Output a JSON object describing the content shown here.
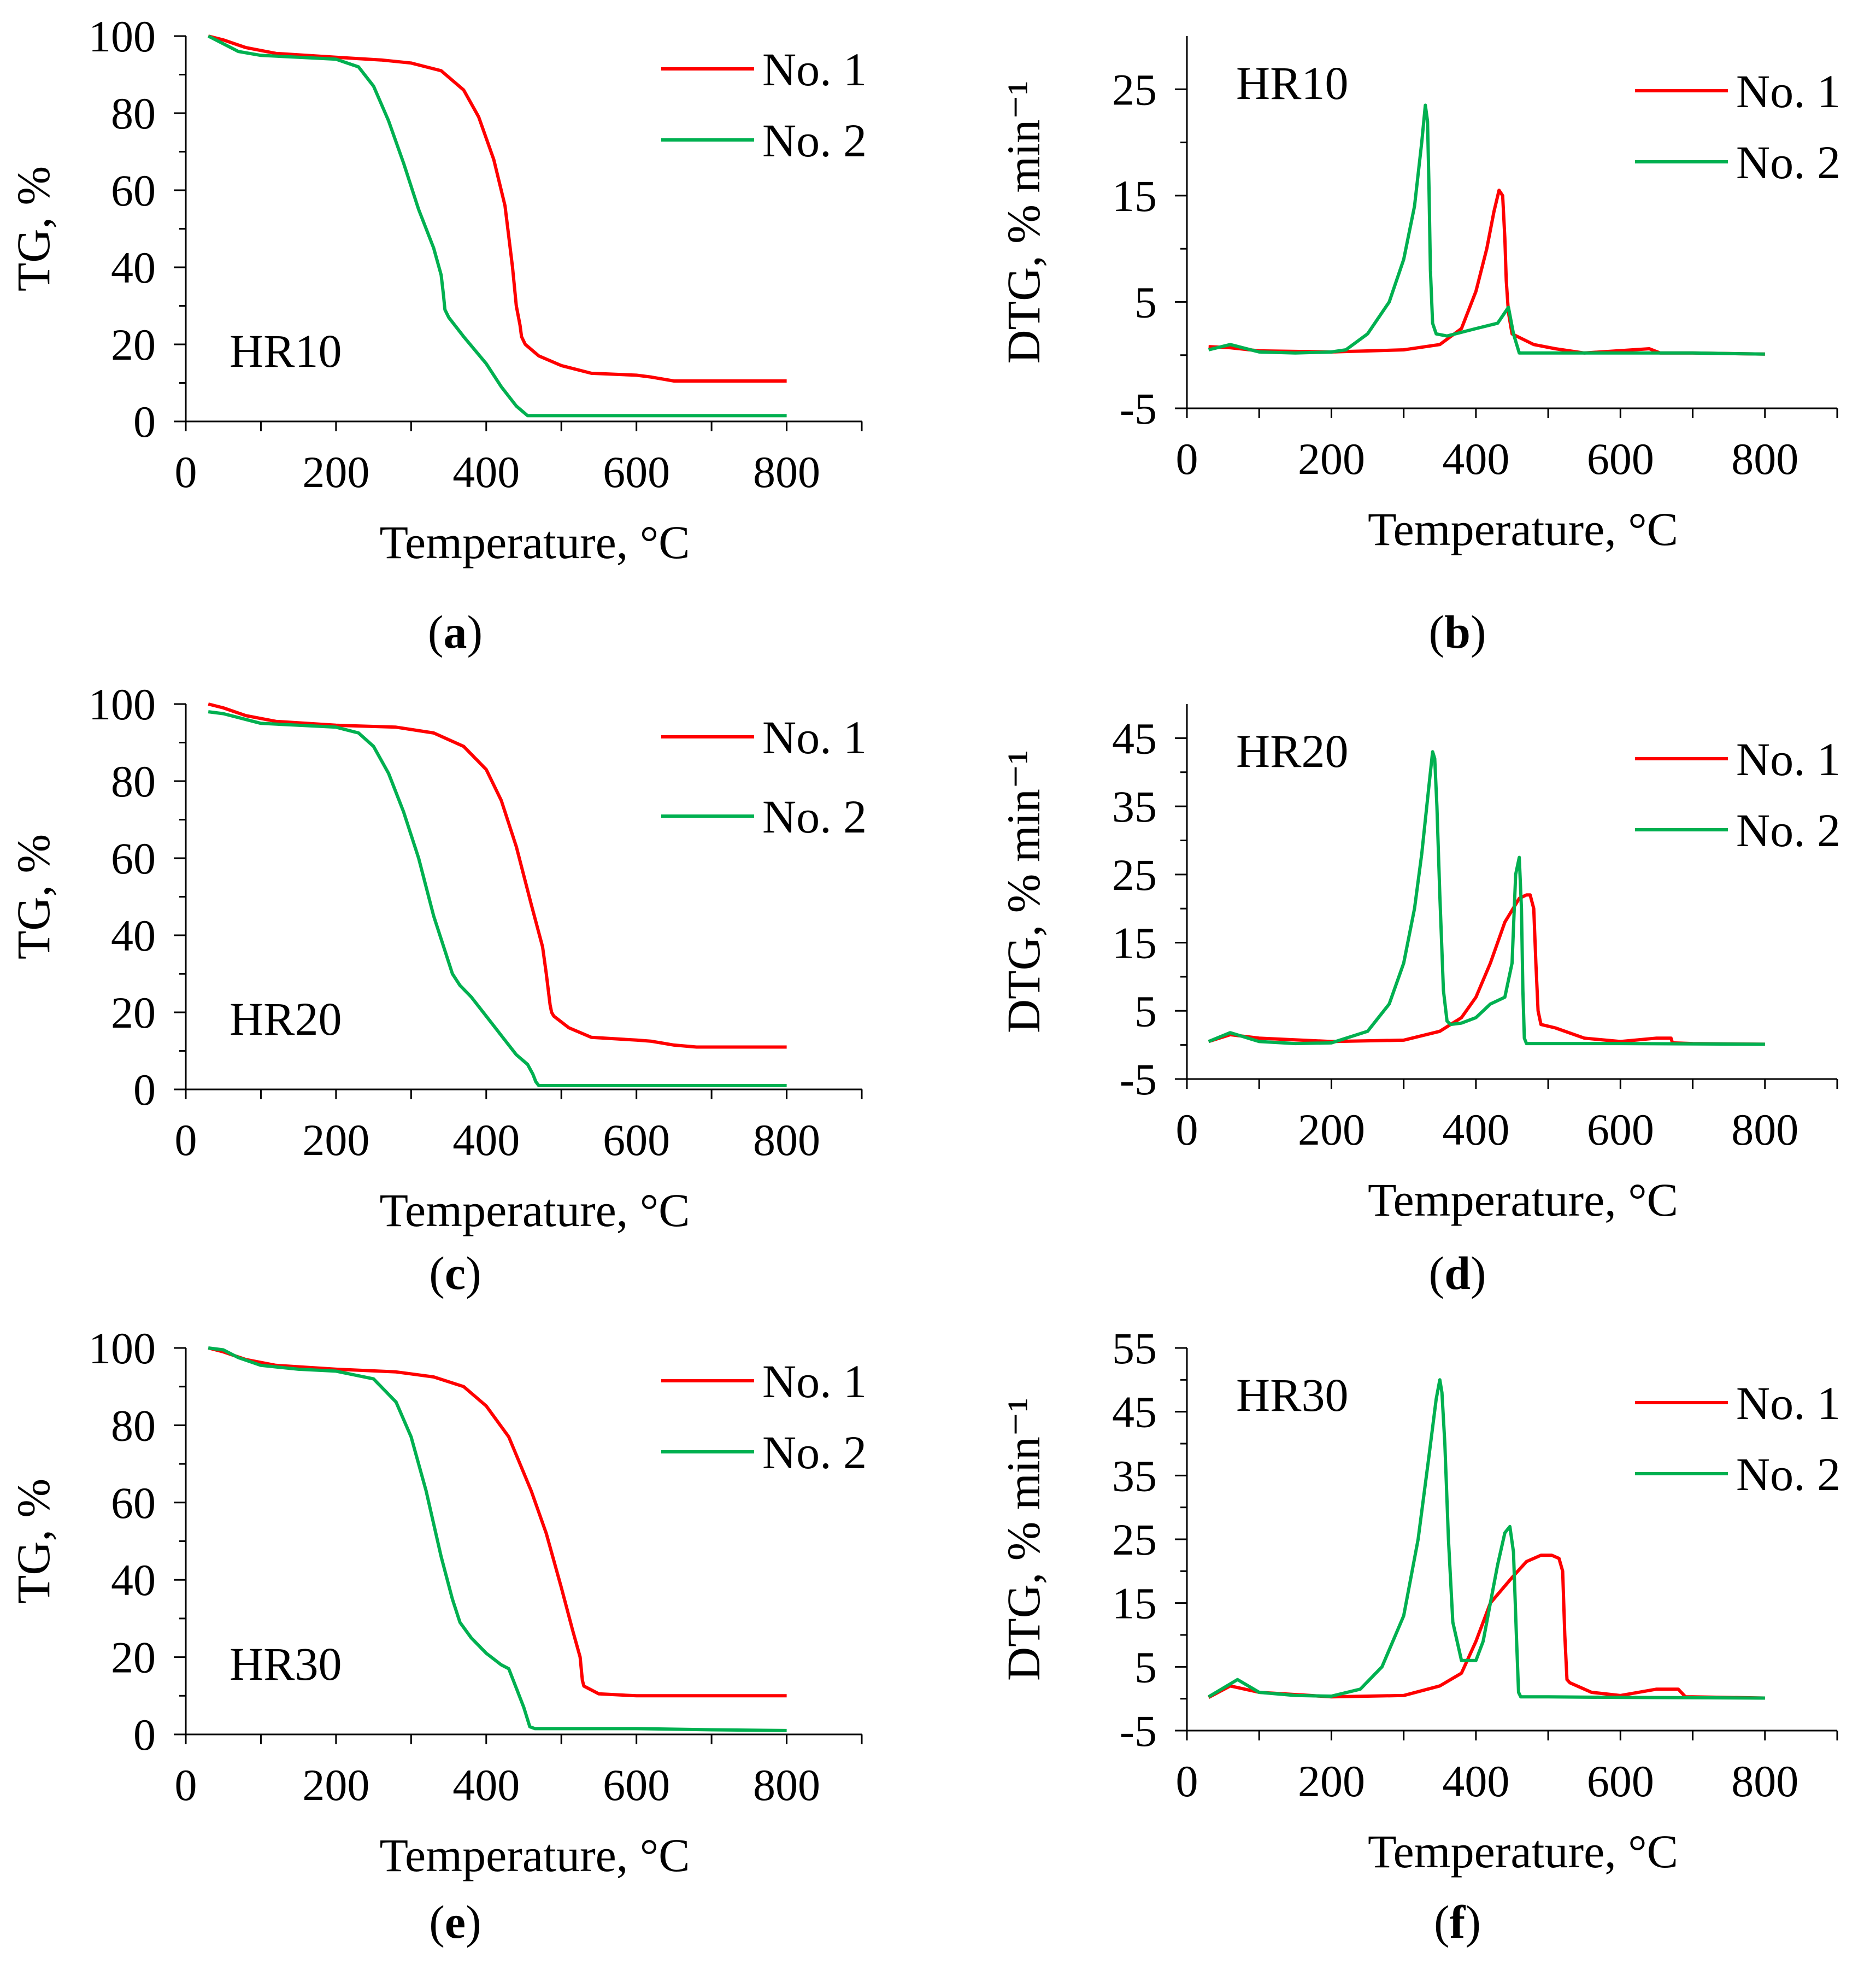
{
  "figure": {
    "panels": [
      "a",
      "b",
      "c",
      "d",
      "e",
      "f"
    ]
  },
  "colors": {
    "series_1": "#ff0000",
    "series_2": "#00b050",
    "axis": "#000000"
  },
  "chart_data": [
    {
      "id": "a",
      "type": "line",
      "panel_label": "a",
      "annotation": "HR10",
      "xlabel": "Temperature,  °C",
      "ylabel": "TG, %",
      "xlim": [
        0,
        900
      ],
      "ylim": [
        0,
        100
      ],
      "xticks": [
        0,
        200,
        400,
        600,
        800
      ],
      "yticks": [
        0,
        20,
        40,
        60,
        80,
        100
      ],
      "legend": [
        "No. 1",
        "No. 2"
      ],
      "series": [
        {
          "name": "No. 1",
          "x": [
            30,
            50,
            80,
            120,
            200,
            260,
            300,
            340,
            370,
            390,
            410,
            425,
            435,
            440,
            445,
            447,
            452,
            470,
            500,
            540,
            600,
            620,
            650,
            700,
            800
          ],
          "y": [
            100,
            99,
            97,
            95.5,
            94.5,
            93.8,
            93,
            91,
            86,
            79,
            68,
            56,
            40,
            30,
            25,
            22,
            20,
            17,
            14.5,
            12.5,
            12,
            11.5,
            10.5,
            10.5,
            10.5
          ]
        },
        {
          "name": "No. 2",
          "x": [
            30,
            50,
            70,
            100,
            150,
            200,
            230,
            250,
            270,
            290,
            310,
            330,
            340,
            343,
            345,
            350,
            370,
            400,
            420,
            440,
            455,
            500,
            600,
            700,
            800
          ],
          "y": [
            100,
            98,
            96,
            95,
            94.5,
            94,
            92,
            87,
            78,
            67,
            55,
            45,
            38,
            33,
            29,
            27,
            22,
            15,
            9,
            4,
            1.5,
            1.5,
            1.5,
            1.5,
            1.5
          ]
        }
      ]
    },
    {
      "id": "b",
      "type": "line",
      "panel_label": "b",
      "annotation": "HR10",
      "xlabel": "Temperature,  °C",
      "ylabel": "DTG,  % min⁻¹",
      "xlim": [
        0,
        900
      ],
      "ylim": [
        -5,
        30
      ],
      "xticks": [
        0,
        200,
        400,
        600,
        800
      ],
      "yticks": [
        -5,
        5,
        15,
        25
      ],
      "legend": [
        "No. 1",
        "No. 2"
      ],
      "series": [
        {
          "name": "No. 1",
          "x": [
            30,
            60,
            100,
            200,
            300,
            350,
            380,
            400,
            415,
            425,
            432,
            437,
            440,
            442,
            445,
            450,
            480,
            510,
            550,
            640,
            655,
            700,
            800
          ],
          "y": [
            0.8,
            0.7,
            0.4,
            0.3,
            0.5,
            1,
            2.5,
            6,
            10,
            13.5,
            15.5,
            15,
            11,
            7,
            4,
            2,
            1,
            0.6,
            0.2,
            0.6,
            0.2,
            0.2,
            0.1
          ]
        },
        {
          "name": "No. 2",
          "x": [
            30,
            60,
            100,
            150,
            200,
            220,
            250,
            280,
            300,
            315,
            325,
            330,
            333,
            335,
            337,
            340,
            345,
            360,
            400,
            430,
            445,
            452,
            460,
            500,
            600,
            700,
            800
          ],
          "y": [
            0.5,
            1,
            0.3,
            0.2,
            0.3,
            0.5,
            2,
            5,
            9,
            14,
            20,
            23.5,
            22,
            16,
            8,
            3,
            2,
            1.8,
            2.5,
            3,
            4.5,
            2,
            0.2,
            0.2,
            0.2,
            0.2,
            0.1
          ]
        }
      ]
    },
    {
      "id": "c",
      "type": "line",
      "panel_label": "c",
      "annotation": "HR20",
      "xlabel": "Temperature,  °C",
      "ylabel": "TG, %",
      "xlim": [
        0,
        900
      ],
      "ylim": [
        0,
        100
      ],
      "xticks": [
        0,
        200,
        400,
        600,
        800
      ],
      "yticks": [
        0,
        20,
        40,
        60,
        80,
        100
      ],
      "legend": [
        "No. 1",
        "No. 2"
      ],
      "series": [
        {
          "name": "No. 1",
          "x": [
            30,
            50,
            80,
            120,
            200,
            280,
            330,
            370,
            400,
            420,
            440,
            460,
            475,
            480,
            485,
            487,
            490,
            510,
            540,
            600,
            620,
            650,
            680,
            800
          ],
          "y": [
            100,
            99,
            97,
            95.5,
            94.5,
            94,
            92.5,
            89,
            83,
            75,
            63,
            48,
            37,
            30,
            22,
            20,
            19,
            16,
            13.5,
            12.8,
            12.5,
            11.5,
            11,
            11
          ]
        },
        {
          "name": "No. 2",
          "x": [
            30,
            50,
            70,
            100,
            150,
            200,
            230,
            250,
            270,
            290,
            310,
            330,
            345,
            355,
            365,
            380,
            400,
            420,
            440,
            455,
            462,
            466,
            470,
            500,
            600,
            700,
            800
          ],
          "y": [
            98,
            97.5,
            96.5,
            95,
            94.5,
            94,
            92.5,
            89,
            82,
            72,
            60,
            45,
            36,
            30,
            27,
            24,
            19,
            14,
            9,
            6.5,
            4,
            2,
            1,
            1,
            1,
            1,
            1
          ]
        }
      ]
    },
    {
      "id": "d",
      "type": "line",
      "panel_label": "d",
      "annotation": "HR20",
      "xlabel": "Temperature,  °C",
      "ylabel": "DTG,  % min⁻¹",
      "xlim": [
        0,
        900
      ],
      "ylim": [
        -5,
        50
      ],
      "xticks": [
        0,
        200,
        400,
        600,
        800
      ],
      "yticks": [
        -5,
        5,
        15,
        25,
        35,
        45
      ],
      "legend": [
        "No. 1",
        "No. 2"
      ],
      "series": [
        {
          "name": "No. 1",
          "x": [
            30,
            60,
            100,
            200,
            300,
            350,
            380,
            400,
            420,
            440,
            460,
            470,
            475,
            480,
            483,
            486,
            490,
            510,
            550,
            600,
            650,
            670,
            672,
            700,
            800
          ],
          "y": [
            0.5,
            1.5,
            1,
            0.5,
            0.7,
            2,
            4,
            7,
            12,
            18,
            21.5,
            22,
            22,
            20,
            12,
            5,
            3,
            2.5,
            1,
            0.5,
            1,
            1,
            0.3,
            0.2,
            0.1
          ]
        },
        {
          "name": "No. 2",
          "x": [
            30,
            60,
            100,
            150,
            200,
            250,
            280,
            300,
            315,
            325,
            335,
            340,
            343,
            346,
            350,
            355,
            360,
            365,
            380,
            400,
            420,
            440,
            450,
            455,
            460,
            463,
            465,
            467,
            470,
            500,
            600,
            800
          ],
          "y": [
            0.5,
            1.8,
            0.5,
            0.2,
            0.3,
            2,
            6,
            12,
            20,
            28,
            38,
            43,
            42,
            35,
            22,
            8,
            3.5,
            3,
            3.2,
            4,
            6,
            7,
            12,
            25,
            27.5,
            20,
            8,
            1,
            0.2,
            0.2,
            0.2,
            0.1
          ]
        }
      ]
    },
    {
      "id": "e",
      "type": "line",
      "panel_label": "e",
      "annotation": "HR30",
      "xlabel": "Temperature,  °C",
      "ylabel": "TG, %",
      "xlim": [
        0,
        900
      ],
      "ylim": [
        0,
        100
      ],
      "xticks": [
        0,
        200,
        400,
        600,
        800
      ],
      "yticks": [
        0,
        20,
        40,
        60,
        80,
        100
      ],
      "legend": [
        "No. 1",
        "No. 2"
      ],
      "series": [
        {
          "name": "No. 1",
          "x": [
            30,
            50,
            80,
            120,
            200,
            280,
            330,
            370,
            400,
            430,
            460,
            480,
            500,
            515,
            525,
            528,
            530,
            550,
            600,
            700,
            800
          ],
          "y": [
            100,
            99,
            97,
            95.5,
            94.5,
            93.8,
            92.5,
            90,
            85,
            77,
            63,
            52,
            38,
            27,
            20,
            14,
            12.5,
            10.5,
            10,
            10,
            10
          ]
        },
        {
          "name": "No. 2",
          "x": [
            30,
            50,
            70,
            100,
            150,
            200,
            250,
            280,
            300,
            320,
            340,
            355,
            365,
            380,
            400,
            420,
            430,
            440,
            450,
            458,
            465,
            500,
            600,
            700,
            800
          ],
          "y": [
            100,
            99.5,
            97.5,
            95.5,
            94.5,
            94,
            92,
            86,
            77,
            63,
            46,
            35,
            29,
            25,
            21,
            18,
            17,
            12,
            7,
            2,
            1.5,
            1.5,
            1.5,
            1.2,
            1
          ]
        }
      ]
    },
    {
      "id": "f",
      "type": "line",
      "panel_label": "f",
      "annotation": "HR30",
      "xlabel": "Temperature,  °C",
      "ylabel": "DTG,  % min⁻¹",
      "xlim": [
        0,
        900
      ],
      "ylim": [
        -5,
        55
      ],
      "xticks": [
        0,
        200,
        400,
        600,
        800
      ],
      "yticks": [
        -5,
        5,
        15,
        25,
        35,
        45,
        55
      ],
      "legend": [
        "No. 1",
        "No. 2"
      ],
      "series": [
        {
          "name": "No. 1",
          "x": [
            30,
            60,
            100,
            200,
            300,
            350,
            380,
            400,
            420,
            450,
            470,
            490,
            505,
            515,
            520,
            523,
            526,
            530,
            560,
            600,
            650,
            680,
            690,
            700,
            800
          ],
          "y": [
            0.2,
            2,
            1,
            0.3,
            0.5,
            2,
            4,
            9,
            15,
            19,
            21.5,
            22.5,
            22.5,
            22,
            20,
            10,
            3,
            2.5,
            1,
            0.5,
            1.5,
            1.5,
            0.3,
            0.3,
            0.1
          ]
        },
        {
          "name": "No. 2",
          "x": [
            30,
            70,
            100,
            150,
            200,
            240,
            270,
            300,
            320,
            335,
            345,
            350,
            353,
            357,
            362,
            368,
            380,
            400,
            410,
            420,
            430,
            440,
            447,
            452,
            456,
            459,
            462,
            470,
            500,
            600,
            800
          ],
          "y": [
            0.3,
            3,
            1,
            0.5,
            0.4,
            1.5,
            5,
            13,
            25,
            38,
            47,
            50,
            48,
            40,
            25,
            12,
            6,
            6,
            9,
            15,
            21,
            26,
            27,
            23,
            10,
            1,
            0.3,
            0.3,
            0.3,
            0.2,
            0.1
          ]
        }
      ]
    }
  ]
}
